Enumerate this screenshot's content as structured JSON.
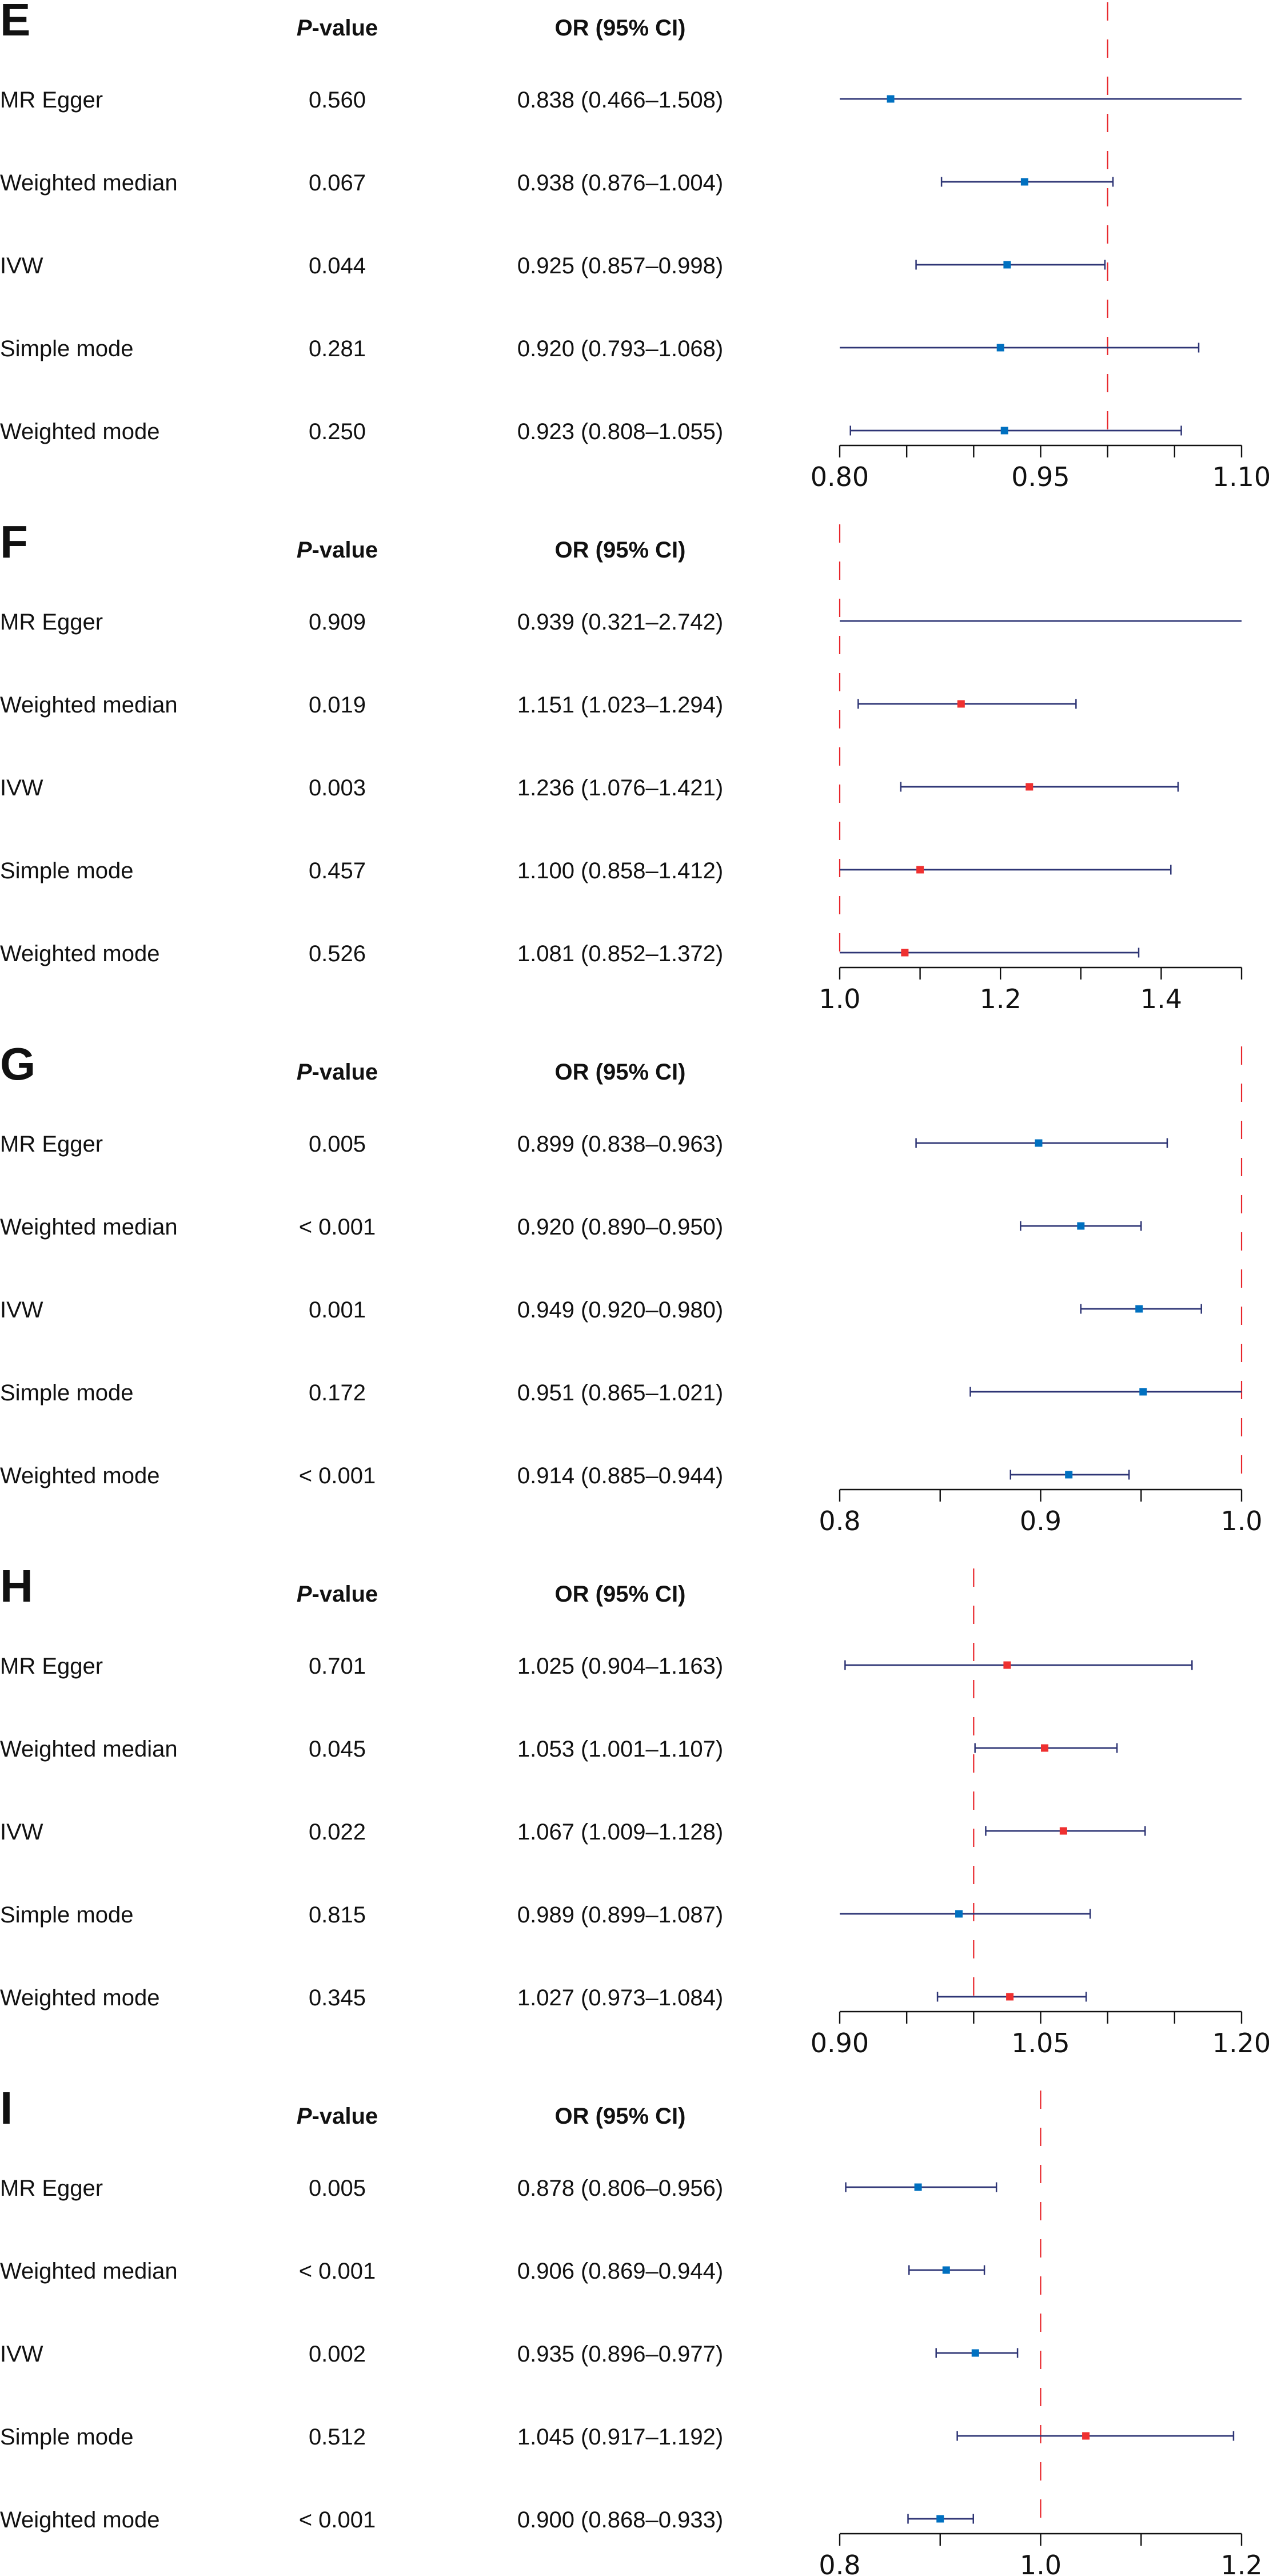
{
  "figure": {
    "header_pvalue_prefix": "P",
    "header_pvalue_suffix": "-value",
    "header_or": "OR (95% CI)",
    "colors": {
      "ci_line": "#2e3575",
      "marker_protective": "#0070c0",
      "marker_risk": "#ef3030",
      "reference_line": "#e8262b",
      "axis": "#111111"
    }
  },
  "chart_data": [
    {
      "type": "forest",
      "panel": "E",
      "xlim": [
        0.8,
        1.1
      ],
      "ticks": [
        0.8,
        0.85,
        0.9,
        0.95,
        1.0,
        1.05,
        1.1
      ],
      "tick_labels": [
        {
          "value": 0.8,
          "label": "0.80"
        },
        {
          "value": 0.95,
          "label": "0.95"
        },
        {
          "value": 1.1,
          "label": "1.10"
        }
      ],
      "reference_line": 1.0,
      "rows": [
        {
          "method": "MR Egger",
          "p": "0.560",
          "or_text": "0.838 (0.466–1.508)",
          "or": 0.838,
          "lo": 0.466,
          "hi": 1.508
        },
        {
          "method": "Weighted median",
          "p": "0.067",
          "or_text": "0.938 (0.876–1.004)",
          "or": 0.938,
          "lo": 0.876,
          "hi": 1.004
        },
        {
          "method": "IVW",
          "p": "0.044",
          "or_text": "0.925 (0.857–0.998)",
          "or": 0.925,
          "lo": 0.857,
          "hi": 0.998
        },
        {
          "method": "Simple mode",
          "p": "0.281",
          "or_text": "0.920 (0.793–1.068)",
          "or": 0.92,
          "lo": 0.793,
          "hi": 1.068
        },
        {
          "method": "Weighted mode",
          "p": "0.250",
          "or_text": "0.923 (0.808–1.055)",
          "or": 0.923,
          "lo": 0.808,
          "hi": 1.055
        }
      ]
    },
    {
      "type": "forest",
      "panel": "F",
      "xlim": [
        1.0,
        1.5
      ],
      "ticks": [
        1.0,
        1.1,
        1.2,
        1.3,
        1.4,
        1.5
      ],
      "tick_labels": [
        {
          "value": 1.0,
          "label": "1.0"
        },
        {
          "value": 1.2,
          "label": "1.2"
        },
        {
          "value": 1.4,
          "label": "1.4"
        }
      ],
      "reference_line": 1.0,
      "rows": [
        {
          "method": "MR Egger",
          "p": "0.909",
          "or_text": "0.939 (0.321–2.742)",
          "or": 0.939,
          "lo": 0.321,
          "hi": 2.742
        },
        {
          "method": "Weighted median",
          "p": "0.019",
          "or_text": "1.151 (1.023–1.294)",
          "or": 1.151,
          "lo": 1.023,
          "hi": 1.294
        },
        {
          "method": "IVW",
          "p": "0.003",
          "or_text": "1.236 (1.076–1.421)",
          "or": 1.236,
          "lo": 1.076,
          "hi": 1.421
        },
        {
          "method": "Simple mode",
          "p": "0.457",
          "or_text": "1.100 (0.858–1.412)",
          "or": 1.1,
          "lo": 0.858,
          "hi": 1.412
        },
        {
          "method": "Weighted mode",
          "p": "0.526",
          "or_text": "1.081 (0.852–1.372)",
          "or": 1.081,
          "lo": 0.852,
          "hi": 1.372
        }
      ]
    },
    {
      "type": "forest",
      "panel": "G",
      "xlim": [
        0.8,
        1.0
      ],
      "ticks": [
        0.8,
        0.85,
        0.9,
        0.95,
        1.0
      ],
      "tick_labels": [
        {
          "value": 0.8,
          "label": "0.8"
        },
        {
          "value": 0.9,
          "label": "0.9"
        },
        {
          "value": 1.0,
          "label": "1.0"
        }
      ],
      "reference_line": 1.0,
      "rows": [
        {
          "method": "MR Egger",
          "p": "0.005",
          "or_text": "0.899 (0.838–0.963)",
          "or": 0.899,
          "lo": 0.838,
          "hi": 0.963
        },
        {
          "method": "Weighted median",
          "p": "< 0.001",
          "or_text": "0.920 (0.890–0.950)",
          "or": 0.92,
          "lo": 0.89,
          "hi": 0.95
        },
        {
          "method": "IVW",
          "p": "0.001",
          "or_text": "0.949 (0.920–0.980)",
          "or": 0.949,
          "lo": 0.92,
          "hi": 0.98
        },
        {
          "method": "Simple mode",
          "p": "0.172",
          "or_text": "0.951 (0.865–1.021)",
          "or": 0.951,
          "lo": 0.865,
          "hi": 1.021
        },
        {
          "method": "Weighted mode",
          "p": "< 0.001",
          "or_text": "0.914 (0.885–0.944)",
          "or": 0.914,
          "lo": 0.885,
          "hi": 0.944
        }
      ]
    },
    {
      "type": "forest",
      "panel": "H",
      "xlim": [
        0.9,
        1.2
      ],
      "ticks": [
        0.9,
        0.95,
        1.0,
        1.05,
        1.1,
        1.15,
        1.2
      ],
      "tick_labels": [
        {
          "value": 0.9,
          "label": "0.90"
        },
        {
          "value": 1.05,
          "label": "1.05"
        },
        {
          "value": 1.2,
          "label": "1.20"
        }
      ],
      "reference_line": 1.0,
      "rows": [
        {
          "method": "MR Egger",
          "p": "0.701",
          "or_text": "1.025 (0.904–1.163)",
          "or": 1.025,
          "lo": 0.904,
          "hi": 1.163
        },
        {
          "method": "Weighted median",
          "p": "0.045",
          "or_text": "1.053 (1.001–1.107)",
          "or": 1.053,
          "lo": 1.001,
          "hi": 1.107
        },
        {
          "method": "IVW",
          "p": "0.022",
          "or_text": "1.067 (1.009–1.128)",
          "or": 1.067,
          "lo": 1.009,
          "hi": 1.128
        },
        {
          "method": "Simple mode",
          "p": "0.815",
          "or_text": "0.989 (0.899–1.087)",
          "or": 0.989,
          "lo": 0.899,
          "hi": 1.087
        },
        {
          "method": "Weighted mode",
          "p": "0.345",
          "or_text": "1.027 (0.973–1.084)",
          "or": 1.027,
          "lo": 0.973,
          "hi": 1.084
        }
      ]
    },
    {
      "type": "forest",
      "panel": "I",
      "xlim": [
        0.8,
        1.2
      ],
      "ticks": [
        0.8,
        0.9,
        1.0,
        1.1,
        1.2
      ],
      "tick_labels": [
        {
          "value": 0.8,
          "label": "0.8"
        },
        {
          "value": 1.0,
          "label": "1.0"
        },
        {
          "value": 1.2,
          "label": "1.2"
        }
      ],
      "reference_line": 1.0,
      "rows": [
        {
          "method": "MR Egger",
          "p": "0.005",
          "or_text": "0.878 (0.806–0.956)",
          "or": 0.878,
          "lo": 0.806,
          "hi": 0.956
        },
        {
          "method": "Weighted median",
          "p": "< 0.001",
          "or_text": "0.906 (0.869–0.944)",
          "or": 0.906,
          "lo": 0.869,
          "hi": 0.944
        },
        {
          "method": "IVW",
          "p": "0.002",
          "or_text": "0.935 (0.896–0.977)",
          "or": 0.935,
          "lo": 0.896,
          "hi": 0.977
        },
        {
          "method": "Simple mode",
          "p": "0.512",
          "or_text": "1.045 (0.917–1.192)",
          "or": 1.045,
          "lo": 0.917,
          "hi": 1.192
        },
        {
          "method": "Weighted mode",
          "p": "< 0.001",
          "or_text": "0.900 (0.868–0.933)",
          "or": 0.9,
          "lo": 0.868,
          "hi": 0.933
        }
      ]
    }
  ]
}
